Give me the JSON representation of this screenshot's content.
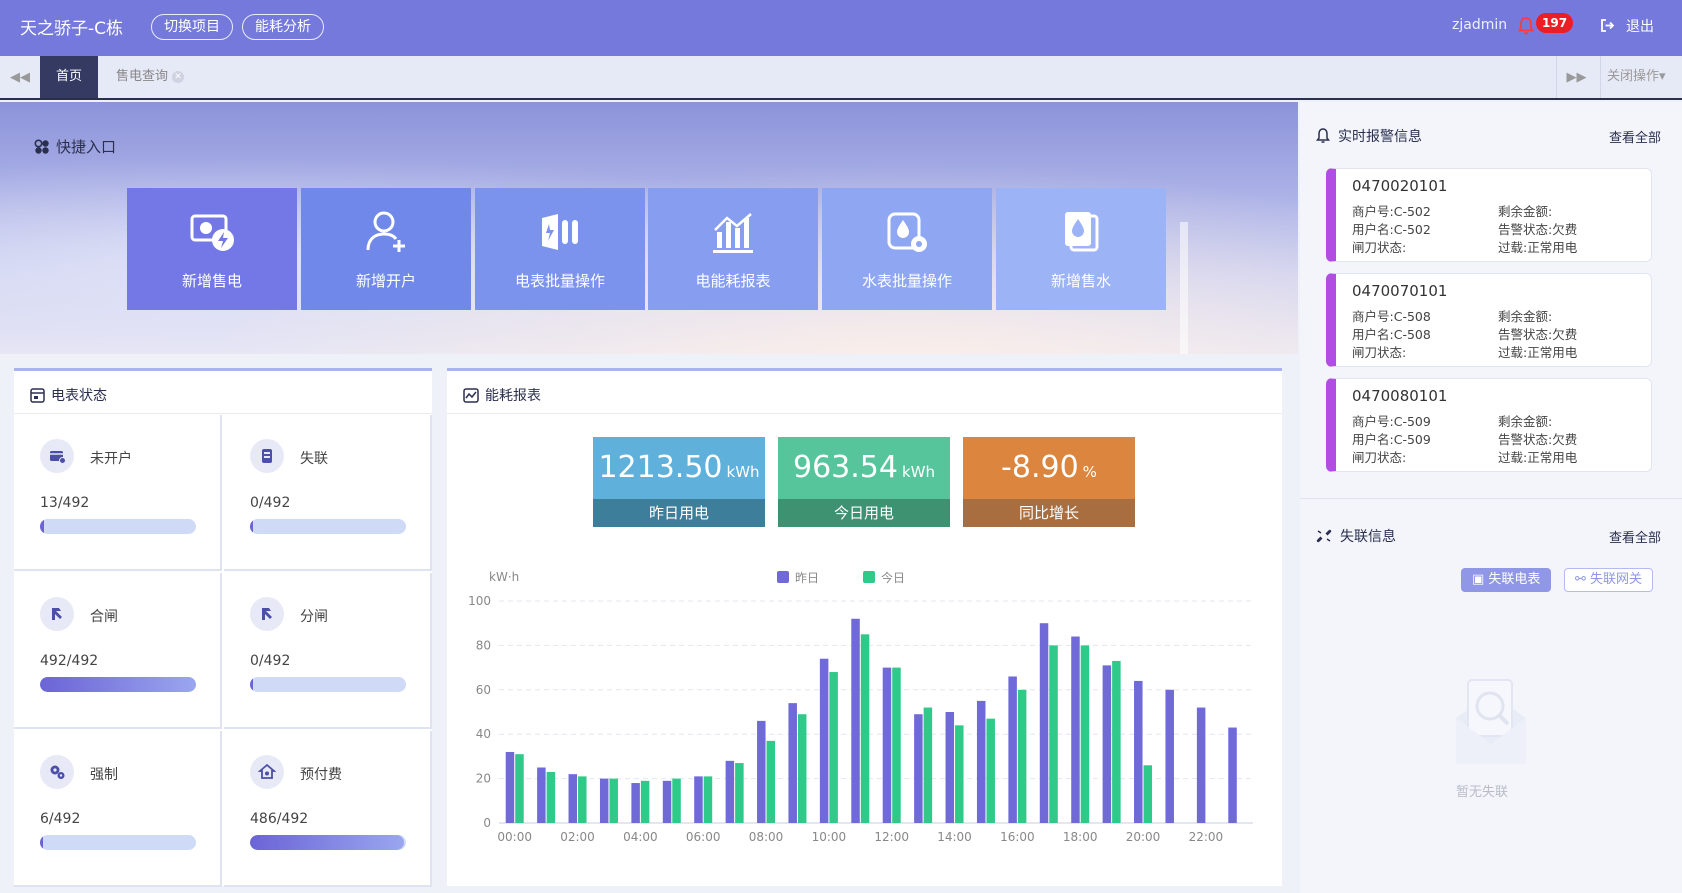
{
  "header": {
    "brand": "天之骄子-C栋",
    "switch_project": "切换项目",
    "energy_analysis": "能耗分析",
    "user": "zjadmin",
    "alarm_count": "197",
    "logout": "退出"
  },
  "tabs": {
    "home": "首页",
    "sales": "售电查询",
    "close_ops": "关闭操作▾"
  },
  "quick": {
    "title": "快捷入口",
    "items": [
      {
        "label": "新增售电",
        "icon": "card-bolt-icon",
        "color": "#7478e6"
      },
      {
        "label": "新增开户",
        "icon": "add-user-icon",
        "color": "#6f88ea"
      },
      {
        "label": "电表批量操作",
        "icon": "meter-batch-icon",
        "color": "#7b93ec"
      },
      {
        "label": "电能耗报表",
        "icon": "bar-report-icon",
        "color": "#879ef0"
      },
      {
        "label": "水表批量操作",
        "icon": "water-meter-gear-icon",
        "color": "#8fa7f2"
      },
      {
        "label": "新增售水",
        "icon": "water-card-icon",
        "color": "#9cb3f6"
      }
    ]
  },
  "meter_status": {
    "title": "电表状态",
    "cells": [
      {
        "label": "未开户",
        "count": "13/492",
        "fraction": 0.026,
        "icon": "card-icon"
      },
      {
        "label": "失联",
        "count": "0/492",
        "fraction": 0.0,
        "icon": "device-icon"
      },
      {
        "label": "合闸",
        "count": "492/492",
        "fraction": 1.0,
        "icon": "switch-on-icon"
      },
      {
        "label": "分闸",
        "count": "0/492",
        "fraction": 0.0,
        "icon": "switch-off-icon"
      },
      {
        "label": "强制",
        "count": "6/492",
        "fraction": 0.012,
        "icon": "gears-icon"
      },
      {
        "label": "预付费",
        "count": "486/492",
        "fraction": 0.988,
        "icon": "house-icon"
      }
    ]
  },
  "energy_report": {
    "title": "能耗报表",
    "stats": [
      {
        "value": "1213.50",
        "unit": "kWh",
        "label": "昨日用电",
        "top": "#5fb0db",
        "bottom": "#3d7f9b"
      },
      {
        "value": "963.54",
        "unit": "kWh",
        "label": "今日用电",
        "top": "#57c59c",
        "bottom": "#3e9171"
      },
      {
        "value": "-8.90",
        "unit": "%",
        "label": "同比增长",
        "top": "#db853f",
        "bottom": "#a96e3f"
      }
    ]
  },
  "chart_data": {
    "type": "bar",
    "ylabel": "kW·h",
    "ylim": [
      0,
      100
    ],
    "yticks": [
      0,
      20,
      40,
      60,
      80,
      100
    ],
    "categories": [
      "00:00",
      "01:00",
      "02:00",
      "03:00",
      "04:00",
      "05:00",
      "06:00",
      "07:00",
      "08:00",
      "09:00",
      "10:00",
      "11:00",
      "12:00",
      "13:00",
      "14:00",
      "15:00",
      "16:00",
      "17:00",
      "18:00",
      "19:00",
      "20:00",
      "21:00",
      "22:00",
      "23:00"
    ],
    "xtick_labels": [
      "00:00",
      "02:00",
      "04:00",
      "06:00",
      "08:00",
      "10:00",
      "12:00",
      "14:00",
      "16:00",
      "18:00",
      "20:00",
      "22:00"
    ],
    "legend_position": "top-center",
    "grid": true,
    "series": [
      {
        "name": "昨日",
        "color": "#6f6ad8",
        "values": [
          32,
          25,
          22,
          20,
          18,
          19,
          21,
          28,
          46,
          54,
          74,
          92,
          70,
          49,
          50,
          55,
          66,
          90,
          84,
          71,
          64,
          60,
          52,
          43
        ]
      },
      {
        "name": "今日",
        "color": "#2fc98a",
        "values": [
          31,
          23,
          21,
          20,
          19,
          20,
          21,
          27,
          37,
          49,
          68,
          85,
          70,
          52,
          44,
          47,
          60,
          80,
          80,
          73,
          26,
          null,
          null,
          null
        ]
      }
    ]
  },
  "alarms": {
    "title": "实时报警信息",
    "view_all": "查看全部",
    "items": [
      {
        "id": "0470020101",
        "merchant": "商户号:C-502",
        "balance": "剩余金额:",
        "username": "用户名:C-502",
        "alarm_status": "告警状态:欠费",
        "gate": "闸刀状态:",
        "overload": "过载:正常用电"
      },
      {
        "id": "0470070101",
        "merchant": "商户号:C-508",
        "balance": "剩余金额:",
        "username": "用户名:C-508",
        "alarm_status": "告警状态:欠费",
        "gate": "闸刀状态:",
        "overload": "过载:正常用电"
      },
      {
        "id": "0470080101",
        "merchant": "商户号:C-509",
        "balance": "剩余金额:",
        "username": "用户名:C-509",
        "alarm_status": "告警状态:欠费",
        "gate": "闸刀状态:",
        "overload": "过载:正常用电"
      }
    ]
  },
  "lost": {
    "title": "失联信息",
    "view_all": "查看全部",
    "btn_meter": "失联电表",
    "btn_gateway": "失联网关",
    "empty": "暂无失联"
  }
}
